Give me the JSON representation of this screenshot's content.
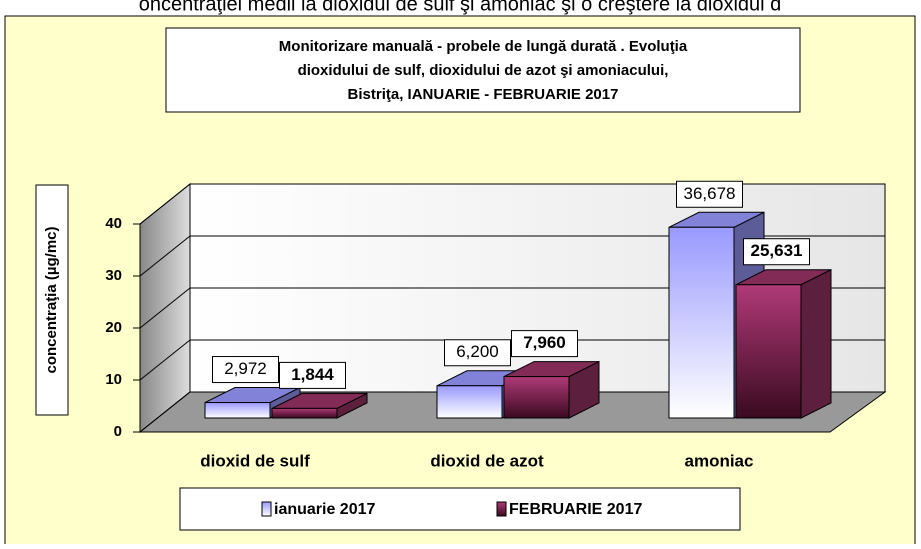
{
  "page_caption": "oncentraţiei medii la dioxidul de sulf şi amoniac şi o creştere la dioxidul d",
  "chart_data": {
    "type": "bar3d",
    "title": [
      "Monitorizare manuală - probele de lungă durată . Evoluţia",
      "dioxidului de sulf, dioxidului de azot şi amoniacului,",
      "Bistriţa,  IANUARIE - FEBRUARIE 2017"
    ],
    "y_label": "concentraţia (µg/mc)",
    "categories": [
      "dioxid de sulf",
      "dioxid de azot",
      "amoniac"
    ],
    "series": [
      {
        "name": "ianuarie 2017",
        "color": "#9999ff",
        "values": [
          2.972,
          6.2,
          36.678
        ],
        "value_labels": [
          "2,972",
          "6,200",
          "36,678"
        ]
      },
      {
        "name": "FEBRUARIE 2017",
        "color": "#993366",
        "values": [
          1.844,
          7.96,
          25.631
        ],
        "value_labels": [
          "1,844",
          "7,960",
          "25,631"
        ]
      }
    ],
    "ylim": [
      0,
      40
    ],
    "yticks": [
      0,
      10,
      20,
      30,
      40
    ],
    "grid": true,
    "legend": "bottom"
  }
}
